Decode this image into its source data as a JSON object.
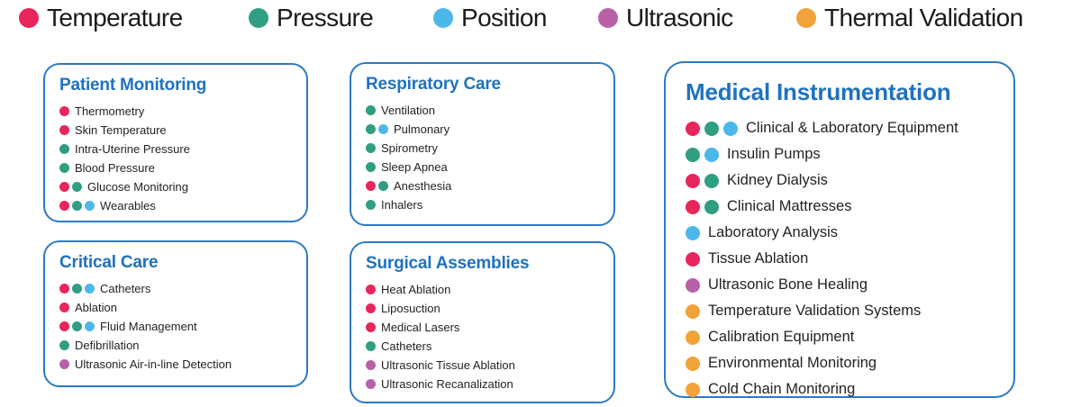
{
  "colors": {
    "temperature": "#e8265b",
    "pressure": "#2f9e81",
    "position": "#4cb8e9",
    "ultrasonic": "#b760a8",
    "thermal": "#f2a237",
    "title_blue": "#1e72bf",
    "border_blue": "#2e79c3",
    "text_dark": "#231f20"
  },
  "legend": {
    "items": [
      {
        "key": "temperature",
        "label": "Temperature"
      },
      {
        "key": "pressure",
        "label": "Pressure"
      },
      {
        "key": "position",
        "label": "Position"
      },
      {
        "key": "ultrasonic",
        "label": "Ultrasonic"
      },
      {
        "key": "thermal",
        "label": "Thermal Validation"
      }
    ]
  },
  "cards": [
    {
      "id": "patient-monitoring",
      "title": "Patient Monitoring",
      "items": [
        {
          "label": "Thermometry",
          "dots": [
            "temperature"
          ]
        },
        {
          "label": "Skin Temperature",
          "dots": [
            "temperature"
          ]
        },
        {
          "label": "Intra-Uterine Pressure",
          "dots": [
            "pressure"
          ]
        },
        {
          "label": "Blood Pressure",
          "dots": [
            "pressure"
          ]
        },
        {
          "label": "Glucose Monitoring",
          "dots": [
            "temperature",
            "pressure"
          ]
        },
        {
          "label": "Wearables",
          "dots": [
            "temperature",
            "pressure",
            "position"
          ]
        }
      ]
    },
    {
      "id": "critical-care",
      "title": "Critical Care",
      "items": [
        {
          "label": "Catheters",
          "dots": [
            "temperature",
            "pressure",
            "position"
          ]
        },
        {
          "label": "Ablation",
          "dots": [
            "temperature"
          ]
        },
        {
          "label": "Fluid Management",
          "dots": [
            "temperature",
            "pressure",
            "position"
          ]
        },
        {
          "label": "Defibrillation",
          "dots": [
            "pressure"
          ]
        },
        {
          "label": "Ultrasonic Air-in-line Detection",
          "dots": [
            "ultrasonic"
          ]
        }
      ]
    },
    {
      "id": "respiratory-care",
      "title": "Respiratory Care",
      "items": [
        {
          "label": "Ventilation",
          "dots": [
            "pressure"
          ]
        },
        {
          "label": "Pulmonary",
          "dots": [
            "pressure",
            "position"
          ]
        },
        {
          "label": "Spirometry",
          "dots": [
            "pressure"
          ]
        },
        {
          "label": "Sleep Apnea",
          "dots": [
            "pressure"
          ]
        },
        {
          "label": "Anesthesia",
          "dots": [
            "temperature",
            "pressure"
          ]
        },
        {
          "label": "Inhalers",
          "dots": [
            "pressure"
          ]
        }
      ]
    },
    {
      "id": "surgical-assemblies",
      "title": "Surgical Assemblies",
      "items": [
        {
          "label": "Heat Ablation",
          "dots": [
            "temperature"
          ]
        },
        {
          "label": "Liposuction",
          "dots": [
            "temperature"
          ]
        },
        {
          "label": "Medical Lasers",
          "dots": [
            "temperature"
          ]
        },
        {
          "label": "Catheters",
          "dots": [
            "pressure"
          ]
        },
        {
          "label": "Ultrasonic Tissue Ablation",
          "dots": [
            "ultrasonic"
          ]
        },
        {
          "label": "Ultrasonic Recanalization",
          "dots": [
            "ultrasonic"
          ]
        }
      ]
    },
    {
      "id": "medical-instrumentation",
      "title": "Medical Instrumentation",
      "items": [
        {
          "label": "Clinical & Laboratory Equipment",
          "dots": [
            "temperature",
            "pressure",
            "position"
          ]
        },
        {
          "label": "Insulin Pumps",
          "dots": [
            "pressure",
            "position"
          ]
        },
        {
          "label": "Kidney Dialysis",
          "dots": [
            "temperature",
            "pressure"
          ]
        },
        {
          "label": "Clinical Mattresses",
          "dots": [
            "temperature",
            "pressure"
          ]
        },
        {
          "label": "Laboratory Analysis",
          "dots": [
            "position"
          ]
        },
        {
          "label": "Tissue Ablation",
          "dots": [
            "temperature"
          ]
        },
        {
          "label": "Ultrasonic Bone Healing",
          "dots": [
            "ultrasonic"
          ]
        },
        {
          "label": "Temperature Validation Systems",
          "dots": [
            "thermal"
          ]
        },
        {
          "label": "Calibration Equipment",
          "dots": [
            "thermal"
          ]
        },
        {
          "label": "Environmental Monitoring",
          "dots": [
            "thermal"
          ]
        },
        {
          "label": "Cold Chain Monitoring",
          "dots": [
            "thermal"
          ]
        }
      ]
    }
  ]
}
